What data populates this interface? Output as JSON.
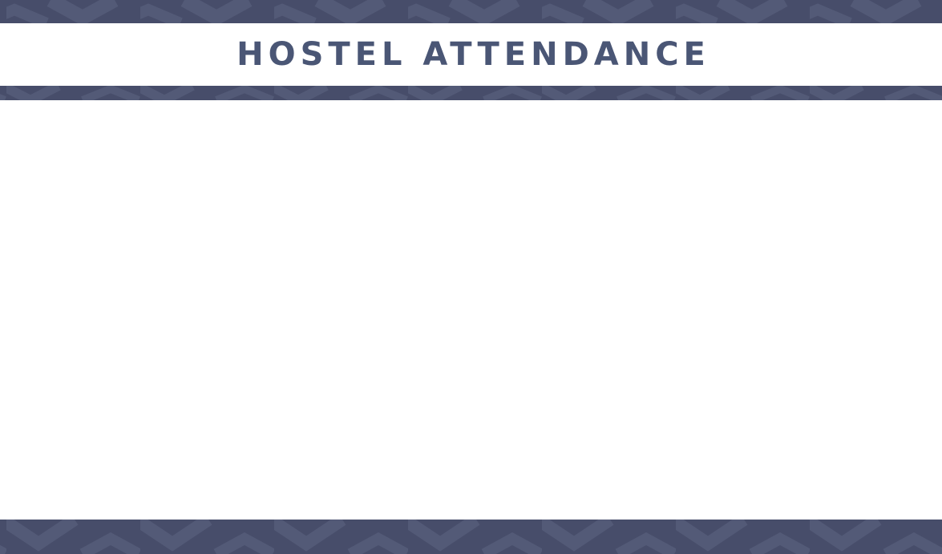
{
  "header": {
    "title": "HOSTEL ATTENDANCE"
  },
  "colors": {
    "band": "#474d6a",
    "chevron": "#545a78",
    "title": "#4a5675",
    "background": "#ffffff"
  }
}
